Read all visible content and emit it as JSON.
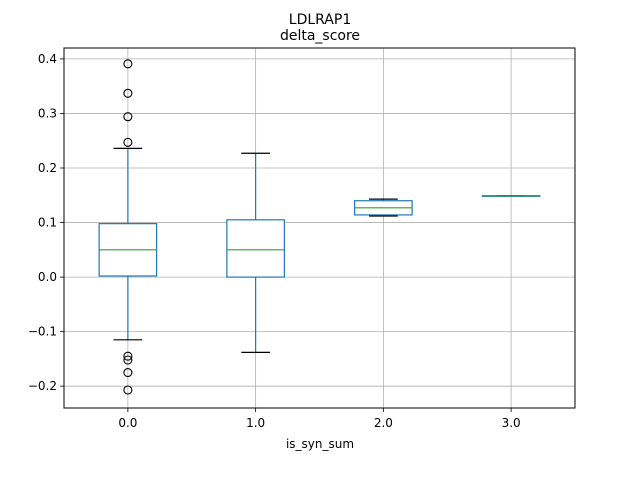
{
  "chart_data": {
    "type": "box",
    "suptitle": "LDLRAP1",
    "title": "delta_score",
    "xlabel": "is_syn_sum",
    "ylabel": "",
    "categories": [
      "0.0",
      "1.0",
      "2.0",
      "3.0"
    ],
    "ylim": [
      -0.24,
      0.42
    ],
    "yticks": [
      -0.2,
      -0.1,
      0.0,
      0.1,
      0.2,
      0.3,
      0.4
    ],
    "ytick_labels": [
      "−0.2",
      "−0.1",
      "0.0",
      "0.1",
      "0.2",
      "0.3",
      "0.4"
    ],
    "grid": true,
    "boxes": [
      {
        "category": "0.0",
        "whisker_low": -0.115,
        "q1": 0.002,
        "median": 0.05,
        "q3": 0.098,
        "whisker_high": 0.236,
        "outliers": [
          0.391,
          0.337,
          0.294,
          0.247,
          -0.145,
          -0.152,
          -0.175,
          -0.207
        ]
      },
      {
        "category": "1.0",
        "whisker_low": -0.138,
        "q1": 0.0,
        "median": 0.05,
        "q3": 0.105,
        "whisker_high": 0.227,
        "outliers": []
      },
      {
        "category": "2.0",
        "whisker_low": 0.112,
        "q1": 0.114,
        "median": 0.127,
        "q3": 0.14,
        "whisker_high": 0.143,
        "outliers": []
      },
      {
        "category": "3.0",
        "whisker_low": 0.149,
        "q1": 0.149,
        "median": 0.149,
        "q3": 0.149,
        "whisker_high": 0.149,
        "outliers": []
      }
    ],
    "colors": {
      "box": "#1f77b4",
      "median": "#2ca02c",
      "whisker_cap": "#000000",
      "grid": "#b0b0b0",
      "outlier_edge": "#000000"
    }
  }
}
